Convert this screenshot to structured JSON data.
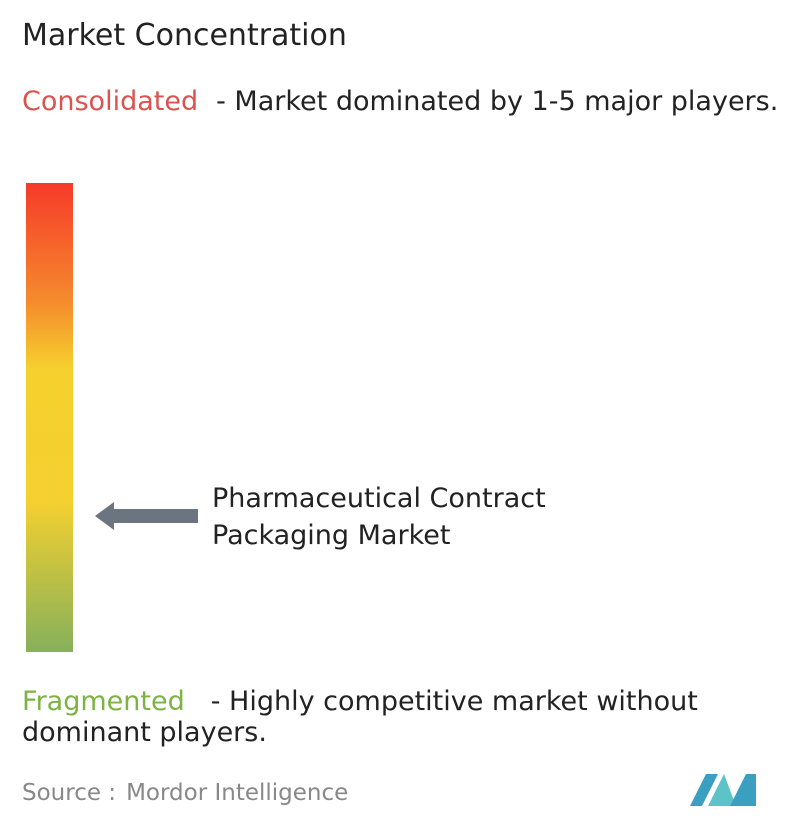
{
  "title": "Market Concentration",
  "consolidated": {
    "label": "Consolidated",
    "description": "- Market dominated by 1-5 major players."
  },
  "market": {
    "name": "Pharmaceutical Contract Packaging Market"
  },
  "fragmented": {
    "label": "Fragmented",
    "description": "- Highly competitive market without dominant players."
  },
  "source": {
    "label": "Source :",
    "name": "Mordor Intelligence"
  }
}
